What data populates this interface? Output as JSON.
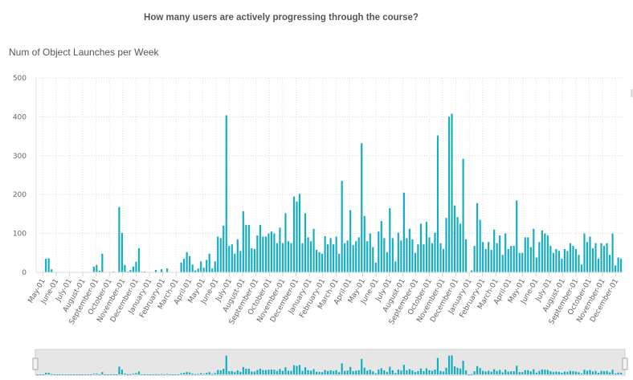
{
  "title": "How many users are actively progressing through the course?",
  "chart_data": {
    "type": "bar",
    "title": "How many users are actively progressing through the course?",
    "ylabel": "Num of Object Launches per Week",
    "xlabel": "",
    "ylim": [
      0,
      500
    ],
    "yticks": [
      "0",
      "100",
      "200",
      "300",
      "400",
      "500"
    ],
    "grid": true,
    "color": "#14aec2",
    "navigator": true,
    "month_labels": [
      "May-01",
      "June-01",
      "July-01",
      "August-01",
      "September-01",
      "October-01",
      "November-01",
      "December-01",
      "January-01",
      "February-01",
      "March-01",
      "April-01",
      "May-01",
      "June-01",
      "July-01",
      "August-01",
      "September-01",
      "October-01",
      "November-01",
      "December-01",
      "January-01",
      "February-01",
      "March-01",
      "April-01",
      "May-01",
      "June-01",
      "July-01",
      "August-01",
      "September-01",
      "October-01",
      "November-01",
      "December-01",
      "January-01",
      "February-01",
      "March-01",
      "April-01",
      "May-01",
      "June-01",
      "July-01",
      "August-01",
      "September-01",
      "October-01",
      "November-01",
      "December-01"
    ],
    "series": [
      {
        "name": "Num of Object Launches per Week",
        "values": [
          0,
          0,
          0,
          35,
          36,
          8,
          0,
          0,
          0,
          0,
          0,
          0,
          0,
          0,
          0,
          0,
          0,
          0,
          0,
          0,
          15,
          19,
          4,
          48,
          0,
          0,
          0,
          2,
          0,
          168,
          101,
          19,
          2,
          6,
          15,
          27,
          62,
          2,
          2,
          0,
          0,
          0,
          6,
          0,
          8,
          0,
          10,
          0,
          0,
          0,
          0,
          25,
          35,
          52,
          42,
          20,
          5,
          10,
          28,
          12,
          32,
          48,
          10,
          28,
          92,
          88,
          120,
          404,
          68,
          72,
          48,
          85,
          55,
          157,
          122,
          122,
          62,
          60,
          95,
          122,
          92,
          92,
          100,
          105,
          100,
          75,
          115,
          75,
          152,
          80,
          75,
          195,
          182,
          202,
          75,
          152,
          90,
          80,
          112,
          58,
          52,
          48,
          93,
          72,
          88,
          72,
          92,
          48,
          235,
          75,
          82,
          160,
          70,
          80,
          90,
          332,
          145,
          80,
          100,
          65,
          25,
          105,
          132,
          88,
          52,
          165,
          88,
          28,
          102,
          82,
          205,
          88,
          112,
          85,
          50,
          72,
          125,
          72,
          130,
          90,
          75,
          102,
          352,
          75,
          60,
          140,
          400,
          408,
          172,
          142,
          125,
          292,
          85,
          0,
          5,
          68,
          178,
          135,
          78,
          60,
          78,
          58,
          110,
          75,
          95,
          45,
          100,
          60,
          68,
          68,
          185,
          50,
          50,
          90,
          90,
          65,
          112,
          38,
          78,
          108,
          100,
          95,
          68,
          50,
          60,
          55,
          35,
          60,
          55,
          75,
          68,
          60,
          45,
          20,
          100,
          78,
          92,
          62,
          75,
          35,
          75,
          68,
          75,
          45,
          100,
          18,
          38,
          35
        ]
      }
    ]
  }
}
